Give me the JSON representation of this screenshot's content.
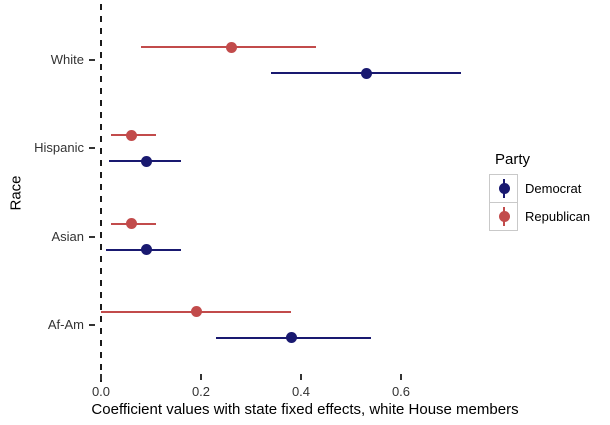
{
  "figure": {
    "xlabel": "Coefficient values with state fixed effects, white House members",
    "ylabel": "Race",
    "x_tick_labels": [
      "0.0",
      "0.2",
      "0.4",
      "0.6"
    ]
  },
  "legend": {
    "title": "Party",
    "entries": [
      {
        "label": "Democrat",
        "color": "#191970"
      },
      {
        "label": "Republican",
        "color": "#C24B4B"
      }
    ]
  },
  "chart_data": {
    "type": "scatter",
    "subtype": "dot-and-whisker coefficient plot (point estimates with confidence intervals)",
    "title": "",
    "xlabel": "Coefficient values with state fixed effects, white House members",
    "ylabel": "Race",
    "categories": [
      "White",
      "Hispanic",
      "Asian",
      "Af-Am"
    ],
    "x_ticks": [
      0.0,
      0.2,
      0.4,
      0.6
    ],
    "xlim": [
      -0.01,
      0.75
    ],
    "reference_line_x": 0.0,
    "grid": false,
    "legend_position": "right",
    "series": [
      {
        "name": "Democrat",
        "color": "#191970",
        "points": [
          {
            "category": "White",
            "estimate": 0.53,
            "ci_low": 0.34,
            "ci_high": 0.72
          },
          {
            "category": "Hispanic",
            "estimate": 0.09,
            "ci_low": 0.015,
            "ci_high": 0.16
          },
          {
            "category": "Asian",
            "estimate": 0.09,
            "ci_low": 0.01,
            "ci_high": 0.16
          },
          {
            "category": "Af-Am",
            "estimate": 0.38,
            "ci_low": 0.23,
            "ci_high": 0.54
          }
        ]
      },
      {
        "name": "Republican",
        "color": "#C24B4B",
        "points": [
          {
            "category": "White",
            "estimate": 0.26,
            "ci_low": 0.08,
            "ci_high": 0.43
          },
          {
            "category": "Hispanic",
            "estimate": 0.06,
            "ci_low": 0.02,
            "ci_high": 0.11
          },
          {
            "category": "Asian",
            "estimate": 0.06,
            "ci_low": 0.02,
            "ci_high": 0.11
          },
          {
            "category": "Af-Am",
            "estimate": 0.19,
            "ci_low": 0.0,
            "ci_high": 0.38
          }
        ]
      }
    ]
  }
}
